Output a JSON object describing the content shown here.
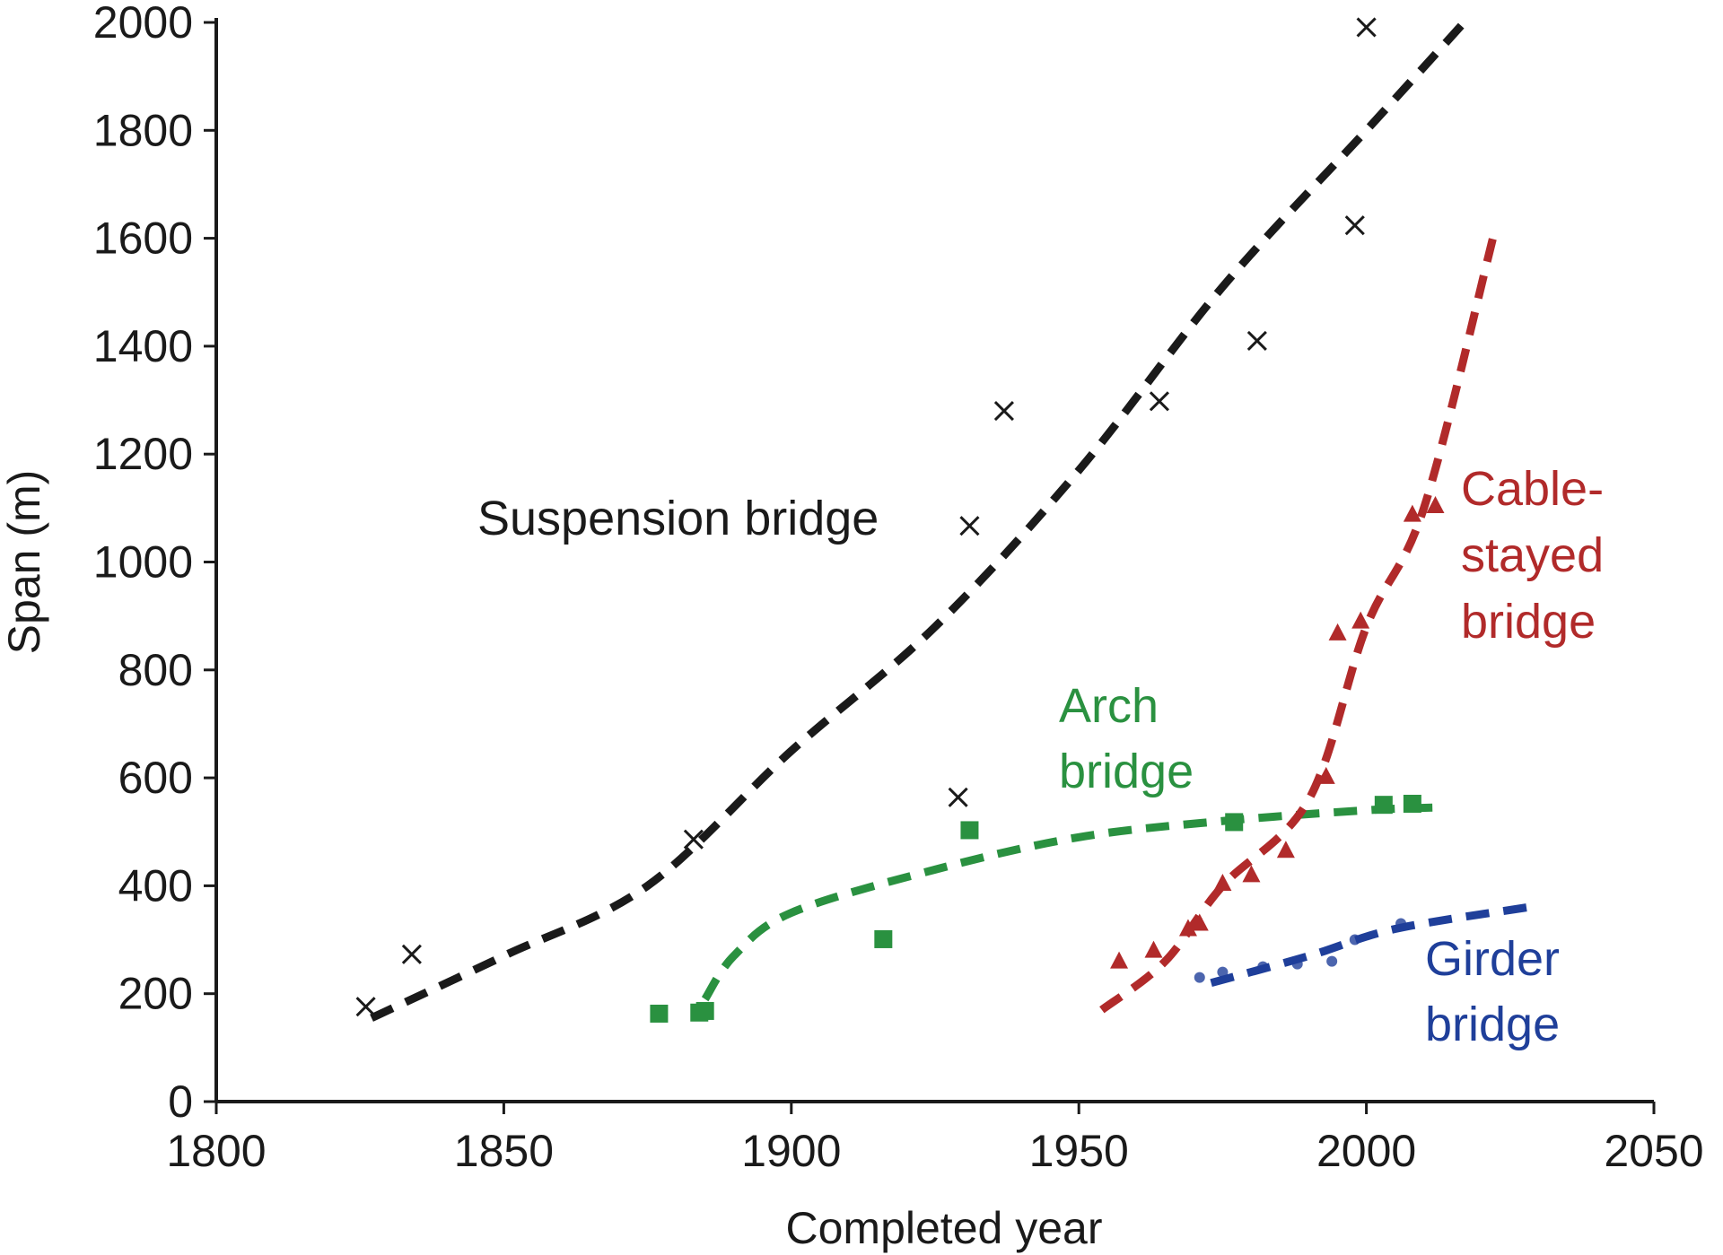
{
  "chart_data": {
    "type": "scatter",
    "title": "",
    "xlabel": "Completed year",
    "ylabel": "Span (m)",
    "xlim": [
      1800,
      2050
    ],
    "ylim": [
      0,
      2000
    ],
    "x_ticks": [
      "1800",
      "1850",
      "1900",
      "1950",
      "2000",
      "2050"
    ],
    "y_ticks": [
      "0",
      "200",
      "400",
      "600",
      "800",
      "1000",
      "1200",
      "1400",
      "1600",
      "1800",
      "2000"
    ],
    "grid": false,
    "legend": "none",
    "series": [
      {
        "name": "Suspension bridge",
        "label_lines": [
          "Suspension bridge"
        ],
        "color": "#1a1a1a",
        "marker": "x",
        "points": [
          [
            1826,
            176
          ],
          [
            1834,
            273
          ],
          [
            1883,
            486
          ],
          [
            1929,
            564
          ],
          [
            1931,
            1067
          ],
          [
            1937,
            1280
          ],
          [
            1964,
            1298
          ],
          [
            1981,
            1410
          ],
          [
            1998,
            1624
          ],
          [
            2000,
            1991
          ]
        ],
        "trend": [
          [
            1827,
            155
          ],
          [
            1850,
            270
          ],
          [
            1875,
            400
          ],
          [
            1900,
            650
          ],
          [
            1925,
            880
          ],
          [
            1950,
            1170
          ],
          [
            1975,
            1510
          ],
          [
            2000,
            1800
          ],
          [
            2017,
            2000
          ]
        ]
      },
      {
        "name": "Arch bridge",
        "label_lines": [
          "Arch",
          "bridge"
        ],
        "color": "#2a9140",
        "marker": "square",
        "points": [
          [
            1877,
            163
          ],
          [
            1884,
            165
          ],
          [
            1885,
            168
          ],
          [
            1916,
            301
          ],
          [
            1931,
            503
          ],
          [
            1977,
            518
          ],
          [
            2003,
            550
          ],
          [
            2008,
            552
          ]
        ],
        "trend": [
          [
            1885,
            190
          ],
          [
            1890,
            270
          ],
          [
            1900,
            350
          ],
          [
            1925,
            430
          ],
          [
            1950,
            490
          ],
          [
            1975,
            520
          ],
          [
            2000,
            540
          ],
          [
            2012,
            545
          ]
        ]
      },
      {
        "name": "Cable-stayed bridge",
        "label_lines": [
          "Cable-",
          "stayed",
          "bridge"
        ],
        "color": "#b12a2a",
        "marker": "triangle",
        "points": [
          [
            1957,
            260
          ],
          [
            1963,
            280
          ],
          [
            1969,
            320
          ],
          [
            1971,
            330
          ],
          [
            1975,
            404
          ],
          [
            1980,
            420
          ],
          [
            1986,
            465
          ],
          [
            1993,
            602
          ],
          [
            1995,
            868
          ],
          [
            1999,
            890
          ],
          [
            2008,
            1088
          ],
          [
            2012,
            1104
          ]
        ],
        "trend": [
          [
            1954,
            170
          ],
          [
            1965,
            260
          ],
          [
            1975,
            400
          ],
          [
            1990,
            560
          ],
          [
            2000,
            880
          ],
          [
            2010,
            1100
          ],
          [
            2022,
            1600
          ]
        ]
      },
      {
        "name": "Girder bridge",
        "label_lines": [
          "Girder",
          "bridge"
        ],
        "color": "#1f3f9a",
        "marker": "dot",
        "points": [
          [
            1971,
            230
          ],
          [
            1975,
            240
          ],
          [
            1982,
            250
          ],
          [
            1988,
            255
          ],
          [
            1994,
            260
          ],
          [
            1998,
            300
          ],
          [
            2006,
            330
          ]
        ],
        "trend": [
          [
            1973,
            220
          ],
          [
            1990,
            270
          ],
          [
            2005,
            320
          ],
          [
            2028,
            360
          ]
        ]
      }
    ]
  }
}
